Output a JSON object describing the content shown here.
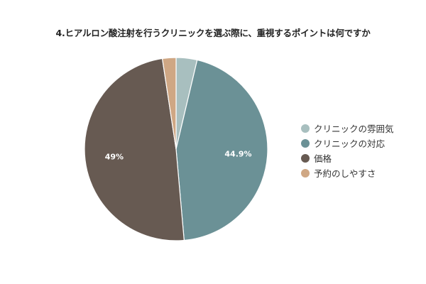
{
  "chart_data": {
    "type": "pie",
    "title": "4.ヒアルロン酸注射を行うクリニックを選ぶ際に、重視するポイントは何ですか",
    "categories": [
      "クリニックの雰囲気",
      "クリニックの対応",
      "価格",
      "予約のしやすさ"
    ],
    "values": [
      3.7,
      44.9,
      49,
      2.4
    ],
    "data_labels": [
      "",
      "44.9%",
      "49%",
      ""
    ],
    "colors": [
      "#a8bfbf",
      "#6b9196",
      "#675a52",
      "#cfa784"
    ],
    "legend_position": "right"
  }
}
